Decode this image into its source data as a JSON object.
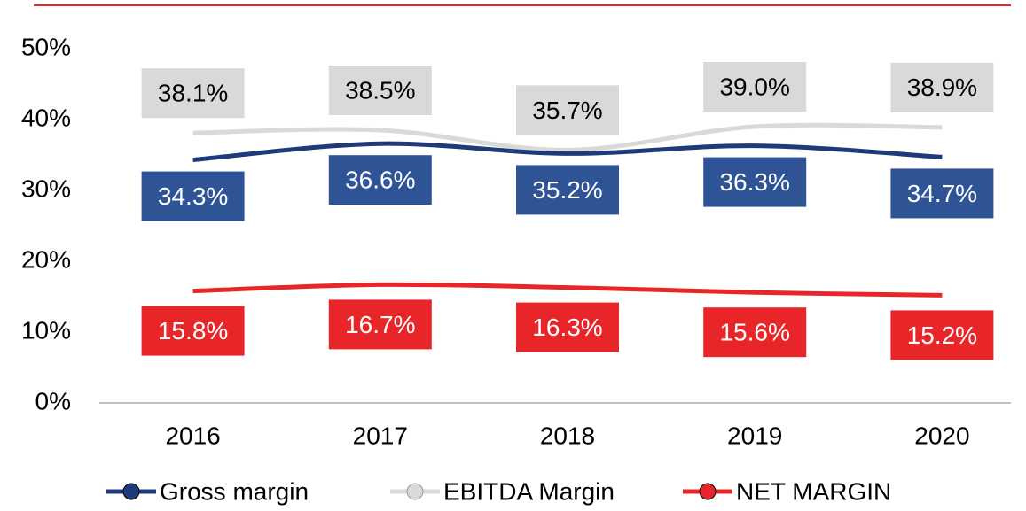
{
  "chart_data": {
    "type": "line",
    "categories": [
      "2016",
      "2017",
      "2018",
      "2019",
      "2020"
    ],
    "series": [
      {
        "name": "Gross margin",
        "color": "#1f3a7a",
        "label_bg": "#2f5496",
        "label_color": "#ffffff",
        "values": [
          34.3,
          36.6,
          35.2,
          36.3,
          34.7
        ],
        "value_labels": [
          "34.3%",
          "36.6%",
          "35.2%",
          "36.3%",
          "34.7%"
        ]
      },
      {
        "name": "EBITDA Margin",
        "color": "#d9d9d9",
        "label_bg": "#d9d9d9",
        "label_color": "#000000",
        "values": [
          38.1,
          38.5,
          35.7,
          39.0,
          38.9
        ],
        "value_labels": [
          "38.1%",
          "38.5%",
          "35.7%",
          "39.0%",
          "38.9%"
        ]
      },
      {
        "name": "NET MARGIN",
        "color": "#e8262a",
        "label_bg": "#e8262a",
        "label_color": "#ffffff",
        "values": [
          15.8,
          16.7,
          16.3,
          15.6,
          15.2
        ],
        "value_labels": [
          "15.8%",
          "16.7%",
          "16.3%",
          "15.6%",
          "15.2%"
        ]
      }
    ],
    "ylim": [
      0,
      50
    ],
    "yticks": [
      {
        "value": 0,
        "label": "0%"
      },
      {
        "value": 10,
        "label": "10%"
      },
      {
        "value": 20,
        "label": "20%"
      },
      {
        "value": 30,
        "label": "30%"
      },
      {
        "value": 40,
        "label": "40%"
      },
      {
        "value": 50,
        "label": "50%"
      }
    ],
    "grid": false,
    "smooth": true,
    "legend": "bottom"
  }
}
